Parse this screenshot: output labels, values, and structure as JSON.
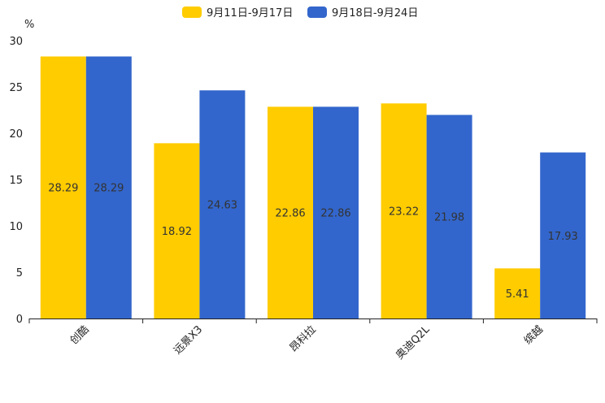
{
  "chart_data": {
    "type": "bar",
    "ylabel": "%",
    "ylim": [
      0,
      30
    ],
    "yticks": [
      0,
      5,
      10,
      15,
      20,
      25,
      30
    ],
    "categories": [
      "创酷",
      "远景X3",
      "昂科拉",
      "奥迪Q2L",
      "缤越"
    ],
    "series": [
      {
        "name": "9月11日-9月17日",
        "color": "#ffcc00",
        "values": [
          28.29,
          18.92,
          22.86,
          23.22,
          5.41
        ]
      },
      {
        "name": "9月18日-9月24日",
        "color": "#3366cc",
        "values": [
          28.29,
          24.63,
          22.86,
          21.98,
          17.93
        ]
      }
    ]
  }
}
